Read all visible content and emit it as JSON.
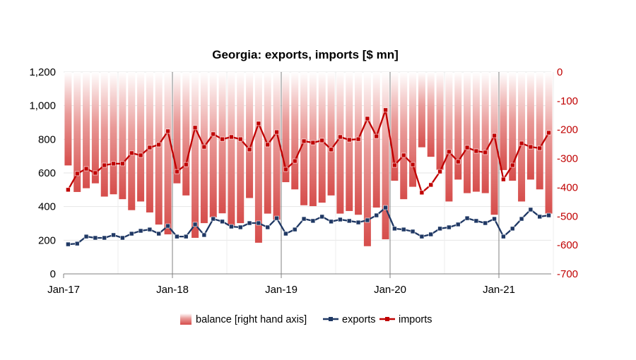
{
  "chart_data": {
    "type": "bar+line",
    "title": "Georgia: exports, imports [$ mn]",
    "x_tick_labels": [
      "Jan-17",
      "Jan-18",
      "Jan-19",
      "Jan-20",
      "Jan-21"
    ],
    "x_start": "2017-01",
    "x_end": "2021-06",
    "y_left": {
      "lim": [
        0,
        1200
      ],
      "ticks": [
        "0",
        "200",
        "400",
        "600",
        "800",
        "1,000",
        "1,200"
      ]
    },
    "y_right": {
      "lim": [
        -700,
        0
      ],
      "ticks": [
        "-700",
        "-600",
        "-500",
        "-400",
        "-300",
        "-200",
        "-100",
        "0"
      ],
      "color": "#c00000"
    },
    "grid": true,
    "legend_position": "bottom",
    "series": [
      {
        "name": "balance [right hand axis]",
        "type": "bar",
        "axis": "right",
        "color": "#d9534f",
        "values": [
          -324,
          -416,
          -403,
          -386,
          -432,
          -424,
          -441,
          -479,
          -449,
          -487,
          -529,
          -563,
          -386,
          -428,
          -575,
          -524,
          -504,
          -490,
          -533,
          -524,
          -437,
          -592,
          -491,
          -512,
          -382,
          -407,
          -462,
          -465,
          -453,
          -428,
          -491,
          -482,
          -495,
          -604,
          -470,
          -580,
          -377,
          -441,
          -398,
          -261,
          -294,
          -339,
          -449,
          -373,
          -420,
          -415,
          -420,
          -495,
          -340,
          -377,
          -449,
          -373,
          -407,
          -491
        ]
      },
      {
        "name": "exports",
        "type": "line",
        "axis": "left",
        "color": "#1f3864",
        "values": [
          176,
          180,
          222,
          214,
          214,
          231,
          214,
          239,
          256,
          264,
          239,
          285,
          222,
          222,
          294,
          231,
          327,
          311,
          281,
          277,
          302,
          302,
          277,
          331,
          239,
          264,
          327,
          315,
          340,
          311,
          323,
          315,
          306,
          319,
          348,
          394,
          269,
          264,
          252,
          222,
          235,
          269,
          277,
          294,
          331,
          315,
          302,
          327,
          222,
          269,
          327,
          382,
          340,
          348
        ]
      },
      {
        "name": "imports",
        "type": "line",
        "axis": "left",
        "color": "#c00000",
        "values": [
          500,
          596,
          625,
          600,
          646,
          655,
          655,
          718,
          705,
          751,
          768,
          848,
          608,
          650,
          869,
          755,
          831,
          801,
          814,
          801,
          739,
          894,
          768,
          843,
          621,
          671,
          789,
          780,
          793,
          739,
          814,
          797,
          801,
          923,
          818,
          974,
          646,
          705,
          650,
          483,
          529,
          608,
          726,
          667,
          751,
          730,
          722,
          822,
          562,
          646,
          776,
          755,
          747,
          839
        ]
      }
    ]
  }
}
